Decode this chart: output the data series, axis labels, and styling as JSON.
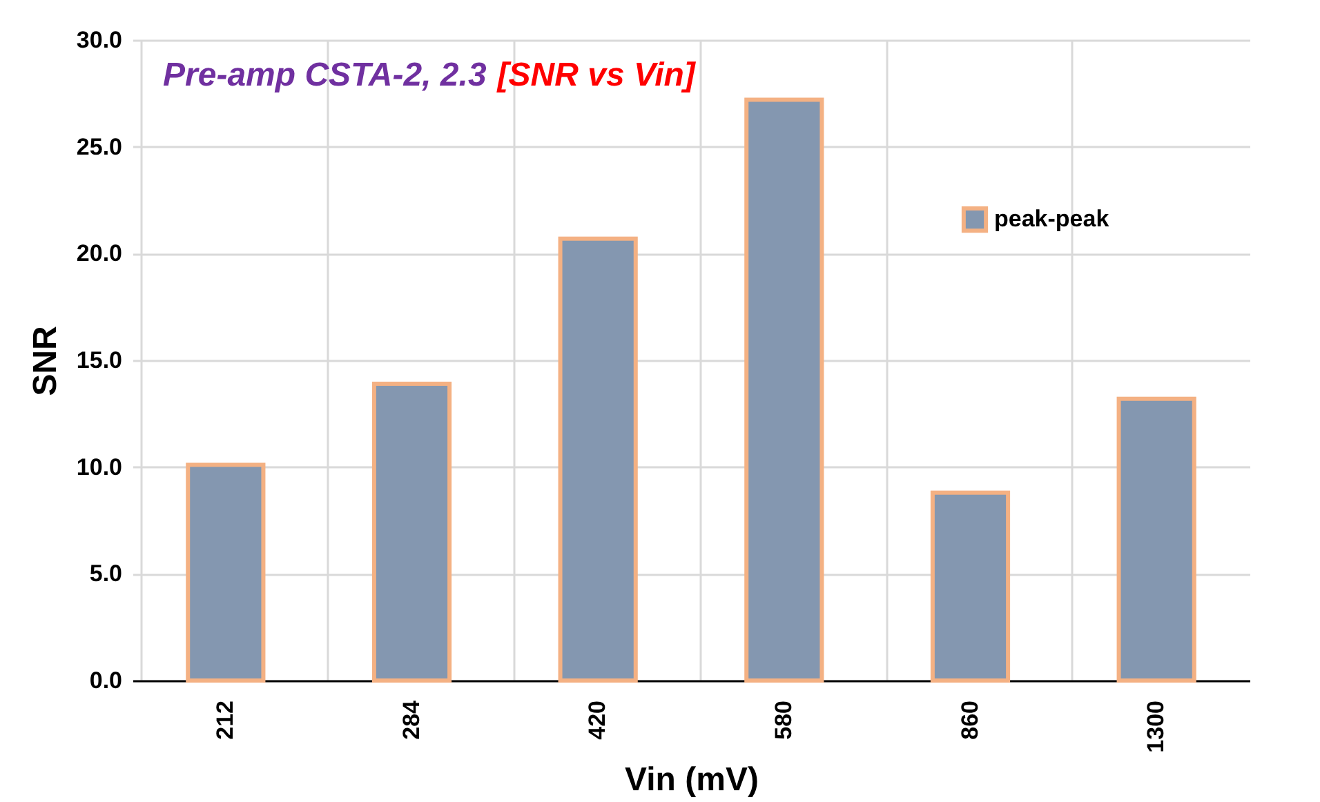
{
  "chart_data": {
    "type": "bar",
    "title": "Pre-amp CSTA-2, 2.3",
    "subtitle": "[SNR vs Vin]",
    "xlabel": "Vin (mV)",
    "ylabel": "SNR",
    "categories": [
      "212",
      "284",
      "420",
      "580",
      "860",
      "1300"
    ],
    "series": [
      {
        "name": "peak-peak",
        "color": "#8497b0",
        "values": [
          10.1,
          13.9,
          20.7,
          27.2,
          8.8,
          13.2
        ]
      }
    ],
    "ylim": [
      0,
      30
    ],
    "yticks": [
      {
        "value": 0,
        "label": "0.0"
      },
      {
        "value": 5,
        "label": "5.0"
      },
      {
        "value": 10,
        "label": "10.0"
      },
      {
        "value": 15,
        "label": "15.0"
      },
      {
        "value": 20,
        "label": "20.0"
      },
      {
        "value": 25,
        "label": "25.0"
      },
      {
        "value": 30,
        "label": "30.0"
      }
    ],
    "grid": true,
    "legend": "right"
  }
}
